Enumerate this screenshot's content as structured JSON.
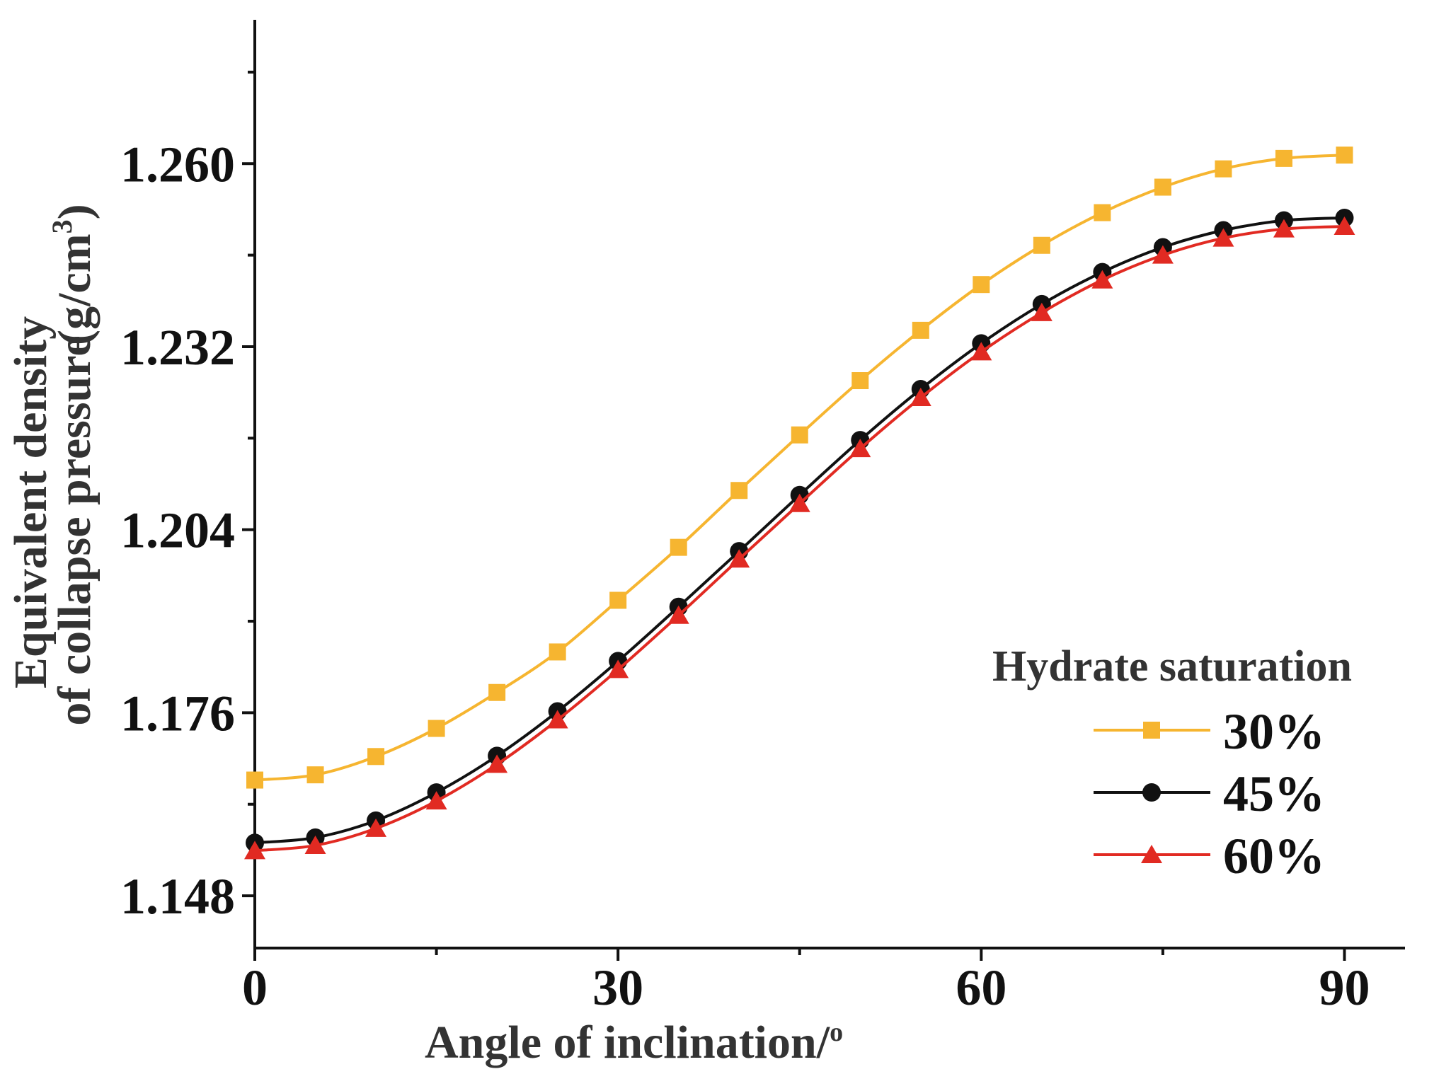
{
  "chart_data": {
    "type": "line",
    "title": "",
    "xlabel": "Angle of inclination/",
    "xlabel_sup": "o",
    "ylabel_line1": "Equivalent density",
    "ylabel_line2": "of collapse pressure",
    "ylabel_unit": "(g/cm",
    "ylabel_unit_sup": "3",
    "ylabel_unit_close": ")",
    "x": [
      0,
      5,
      10,
      15,
      20,
      25,
      30,
      35,
      40,
      45,
      50,
      55,
      60,
      65,
      70,
      75,
      80,
      85,
      90
    ],
    "xlim": [
      0,
      95
    ],
    "ylim": [
      1.14,
      1.282
    ],
    "xticks": [
      0,
      30,
      60,
      90
    ],
    "xtick_labels": [
      "0",
      "30",
      "60",
      "90"
    ],
    "yticks": [
      1.148,
      1.176,
      1.204,
      1.232,
      1.26
    ],
    "ytick_labels": [
      "1.148",
      "1.176",
      "1.204",
      "1.232",
      "1.260"
    ],
    "legend": {
      "title": "Hydrate saturation",
      "position": "bottom-right"
    },
    "series": [
      {
        "name": "30%",
        "color": "#F6B530",
        "marker": "square",
        "values": [
          1.1657,
          1.1665,
          1.1693,
          1.1736,
          1.1791,
          1.1853,
          1.1932,
          1.2013,
          1.21,
          1.2185,
          1.2268,
          1.2345,
          1.2415,
          1.2475,
          1.2525,
          1.2564,
          1.2592,
          1.2608,
          1.2613
        ]
      },
      {
        "name": "45%",
        "color": "#111111",
        "marker": "circle",
        "values": [
          1.1561,
          1.1569,
          1.1595,
          1.1638,
          1.1694,
          1.1762,
          1.1839,
          1.1922,
          1.2007,
          1.2093,
          1.2177,
          1.2255,
          1.2325,
          1.2385,
          1.2434,
          1.2472,
          1.2498,
          1.2513,
          1.2517
        ]
      },
      {
        "name": "60%",
        "color": "#E12A22",
        "marker": "triangle",
        "values": [
          1.1549,
          1.1557,
          1.1583,
          1.1625,
          1.1681,
          1.1749,
          1.1826,
          1.1909,
          1.1995,
          1.208,
          1.2164,
          1.2242,
          1.2312,
          1.2372,
          1.2422,
          1.246,
          1.2486,
          1.25,
          1.2504
        ]
      }
    ]
  }
}
